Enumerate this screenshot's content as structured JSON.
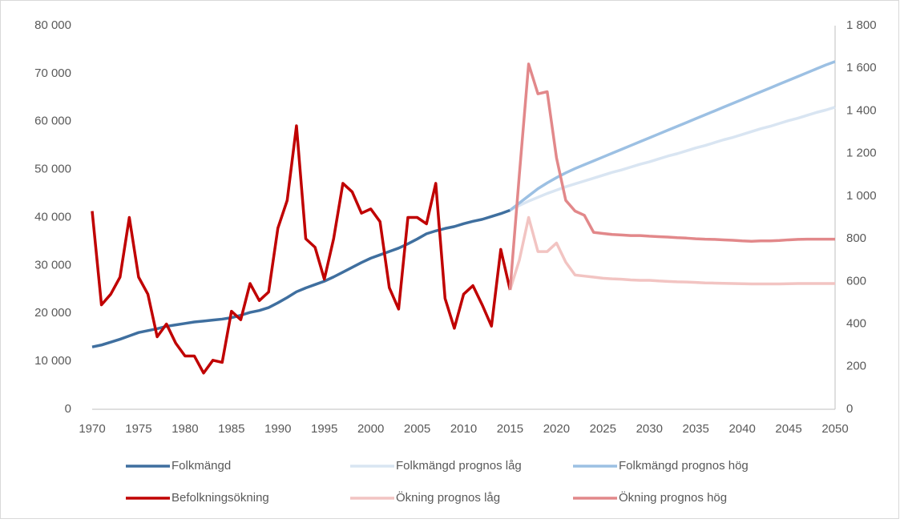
{
  "chart_data": {
    "type": "line",
    "x": [
      1970,
      1971,
      1972,
      1973,
      1974,
      1975,
      1976,
      1977,
      1978,
      1979,
      1980,
      1981,
      1982,
      1983,
      1984,
      1985,
      1986,
      1987,
      1988,
      1989,
      1990,
      1991,
      1992,
      1993,
      1994,
      1995,
      1996,
      1997,
      1998,
      1999,
      2000,
      2001,
      2002,
      2003,
      2004,
      2005,
      2006,
      2007,
      2008,
      2009,
      2010,
      2011,
      2012,
      2013,
      2014,
      2015,
      2016,
      2017,
      2018,
      2019,
      2020,
      2021,
      2022,
      2023,
      2024,
      2025,
      2026,
      2027,
      2028,
      2029,
      2030,
      2031,
      2032,
      2033,
      2034,
      2035,
      2036,
      2037,
      2038,
      2039,
      2040,
      2041,
      2042,
      2043,
      2044,
      2045,
      2046,
      2047,
      2048,
      2049,
      2050
    ],
    "xlim": [
      1970,
      2050
    ],
    "xticks": [
      1970,
      1975,
      1980,
      1985,
      1990,
      1995,
      2000,
      2005,
      2010,
      2015,
      2020,
      2025,
      2030,
      2035,
      2040,
      2045,
      2050
    ],
    "ylim": [
      0,
      80000
    ],
    "yticks": [
      0,
      {
        "value": 10000,
        "label": "10 000"
      },
      {
        "value": 20000,
        "label": "20 000"
      },
      {
        "value": 30000,
        "label": "30 000"
      },
      {
        "value": 40000,
        "label": "40 000"
      },
      {
        "value": 50000,
        "label": "50 000"
      },
      {
        "value": 60000,
        "label": "60 000"
      },
      {
        "value": 70000,
        "label": "70 000"
      },
      {
        "value": 80000,
        "label": "80 000"
      }
    ],
    "y2lim": [
      0,
      1800
    ],
    "y2ticks": [
      0,
      200,
      400,
      600,
      800,
      {
        "value": 1000,
        "label": "1 000"
      },
      {
        "value": 1200,
        "label": "1 200"
      },
      {
        "value": 1400,
        "label": "1 400"
      },
      {
        "value": 1600,
        "label": "1 600"
      },
      {
        "value": 1800,
        "label": "1 800"
      }
    ],
    "grid": false,
    "series": [
      {
        "name": "Folkmängd",
        "color": "#3f6f9f",
        "values": [
          13000,
          13400,
          14000,
          14600,
          15300,
          16000,
          16400,
          16800,
          17300,
          17600,
          17900,
          18200,
          18400,
          18600,
          18800,
          19100,
          19600,
          20200,
          20600,
          21200,
          22200,
          23300,
          24500,
          25300,
          26000,
          26700,
          27600,
          28600,
          29600,
          30600,
          31500,
          32200,
          32900,
          33600,
          34500,
          35500,
          36600,
          37200,
          37700,
          38100,
          38700,
          39200,
          39600,
          40200,
          40800,
          41500,
          null,
          null,
          null,
          null,
          null,
          null,
          null,
          null,
          null,
          null,
          null,
          null,
          null,
          null,
          null,
          null,
          null,
          null,
          null,
          null,
          null,
          null,
          null,
          null,
          null,
          null,
          null,
          null,
          null,
          null,
          null,
          null,
          null,
          null,
          null
        ]
      },
      {
        "name": "Folkmängd prognos låg",
        "color": "#d9e5f2",
        "values": [
          null,
          null,
          null,
          null,
          null,
          null,
          null,
          null,
          null,
          null,
          null,
          null,
          null,
          null,
          null,
          null,
          null,
          null,
          null,
          null,
          null,
          null,
          null,
          null,
          null,
          null,
          null,
          null,
          null,
          null,
          null,
          null,
          null,
          null,
          null,
          null,
          null,
          null,
          null,
          null,
          null,
          null,
          null,
          null,
          null,
          41500,
          42500,
          43400,
          44200,
          45000,
          45700,
          46400,
          47000,
          47600,
          48200,
          48800,
          49400,
          49900,
          50500,
          51100,
          51600,
          52200,
          52800,
          53300,
          53900,
          54500,
          55000,
          55600,
          56200,
          56700,
          57300,
          57900,
          58500,
          59000,
          59600,
          60200,
          60700,
          61300,
          61900,
          62400,
          63000
        ]
      },
      {
        "name": "Folkmängd prognos hög",
        "color": "#9cc0e3",
        "values": [
          null,
          null,
          null,
          null,
          null,
          null,
          null,
          null,
          null,
          null,
          null,
          null,
          null,
          null,
          null,
          null,
          null,
          null,
          null,
          null,
          null,
          null,
          null,
          null,
          null,
          null,
          null,
          null,
          null,
          null,
          null,
          null,
          null,
          null,
          null,
          null,
          null,
          null,
          null,
          null,
          null,
          null,
          null,
          null,
          null,
          41500,
          43000,
          44500,
          46000,
          47200,
          48300,
          49300,
          50200,
          51000,
          51800,
          52600,
          53400,
          54200,
          55000,
          55800,
          56600,
          57400,
          58200,
          59000,
          59800,
          60600,
          61400,
          62200,
          63000,
          63800,
          64600,
          65400,
          66200,
          67000,
          67800,
          68600,
          69400,
          70200,
          71000,
          71800,
          72500
        ]
      },
      {
        "name": "Befolkningsökning",
        "color": "#c00000",
        "axis": "y2",
        "values": [
          930,
          490,
          540,
          620,
          900,
          620,
          540,
          340,
          400,
          310,
          250,
          250,
          170,
          230,
          220,
          460,
          420,
          590,
          510,
          550,
          850,
          980,
          1330,
          800,
          760,
          610,
          800,
          1060,
          1020,
          920,
          940,
          880,
          570,
          470,
          900,
          900,
          870,
          1060,
          520,
          380,
          540,
          580,
          490,
          390,
          750,
          560,
          null,
          null,
          null,
          null,
          null,
          null,
          null,
          null,
          null,
          null,
          null,
          null,
          null,
          null,
          null,
          null,
          null,
          null,
          null,
          null,
          null,
          null,
          null,
          null,
          null,
          null,
          null,
          null,
          null,
          null,
          null,
          null,
          null,
          null,
          null
        ]
      },
      {
        "name": "Ökning prognos låg",
        "color": "#f2c4c2",
        "axis": "y2",
        "values": [
          null,
          null,
          null,
          null,
          null,
          null,
          null,
          null,
          null,
          null,
          null,
          null,
          null,
          null,
          null,
          null,
          null,
          null,
          null,
          null,
          null,
          null,
          null,
          null,
          null,
          null,
          null,
          null,
          null,
          null,
          null,
          null,
          null,
          null,
          null,
          null,
          null,
          null,
          null,
          null,
          null,
          null,
          null,
          null,
          null,
          560,
          700,
          900,
          740,
          740,
          780,
          690,
          630,
          625,
          620,
          615,
          612,
          610,
          607,
          605,
          605,
          602,
          600,
          598,
          597,
          595,
          593,
          592,
          591,
          590,
          589,
          588,
          588,
          588,
          588,
          589,
          590,
          590,
          590,
          590,
          590
        ]
      },
      {
        "name": "Ökning prognos hög",
        "color": "#e2888a",
        "axis": "y2",
        "values": [
          null,
          null,
          null,
          null,
          null,
          null,
          null,
          null,
          null,
          null,
          null,
          null,
          null,
          null,
          null,
          null,
          null,
          null,
          null,
          null,
          null,
          null,
          null,
          null,
          null,
          null,
          null,
          null,
          null,
          null,
          null,
          null,
          null,
          null,
          null,
          null,
          null,
          null,
          null,
          null,
          null,
          null,
          null,
          null,
          null,
          560,
          1100,
          1620,
          1480,
          1490,
          1180,
          980,
          930,
          910,
          830,
          825,
          820,
          818,
          815,
          815,
          812,
          810,
          808,
          805,
          803,
          800,
          798,
          797,
          795,
          793,
          790,
          788,
          790,
          790,
          792,
          795,
          797,
          798,
          798,
          798,
          798
        ]
      }
    ]
  }
}
